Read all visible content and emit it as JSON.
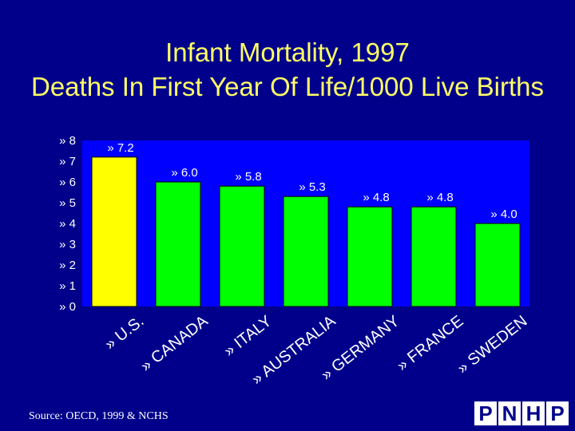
{
  "chart_data": {
    "type": "bar",
    "title": "Infant Mortality, 1997",
    "subtitle": "Deaths In First Year Of Life/1000 Live Births",
    "categories": [
      "U.S.",
      "CANADA",
      "ITALY",
      "AUSTRALIA",
      "GERMANY",
      "FRANCE",
      "SWEDEN"
    ],
    "values": [
      7.2,
      6.0,
      5.8,
      5.3,
      4.8,
      4.8,
      4.0
    ],
    "value_labels": [
      "» 7.2",
      "» 6.0",
      "» 5.8",
      "» 5.3",
      "» 4.8",
      "» 4.8",
      "» 4.0"
    ],
    "category_labels": [
      "» U.S.",
      "» CANADA",
      "» ITALY",
      "» AUSTRALIA",
      "» GERMANY",
      "» FRANCE",
      "» SWEDEN"
    ],
    "yticks": [
      "» 0",
      "» 1",
      "» 2",
      "» 3",
      "» 4",
      "» 5",
      "» 6",
      "» 7",
      "» 8"
    ],
    "ylim": [
      0,
      8
    ],
    "grid": false,
    "colors": {
      "background": "#00008B",
      "plot_area": "#0000FF",
      "highlight_bar": "#FFFF00",
      "bar": "#00FF00",
      "title": "#FFFF66",
      "text": "#FFFFFF"
    }
  },
  "footer": {
    "source": "Source: OECD, 1999 & NCHS",
    "logo_letters": [
      "P",
      "N",
      "H",
      "P"
    ]
  }
}
